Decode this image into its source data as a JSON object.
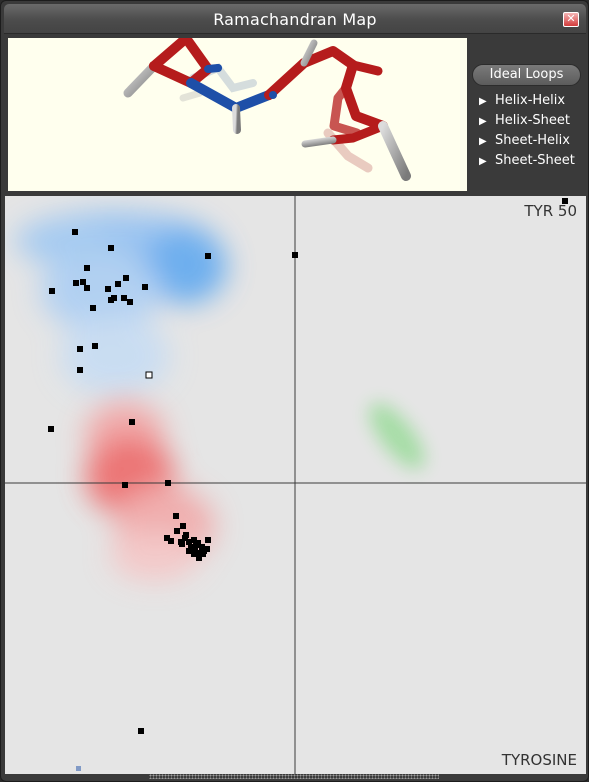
{
  "window": {
    "title": "Ramachandran Map",
    "close_glyph": "✕"
  },
  "side_panel": {
    "ideal_loops_label": "Ideal Loops",
    "items": [
      {
        "label": "Helix-Helix"
      },
      {
        "label": "Helix-Sheet"
      },
      {
        "label": "Sheet-Helix"
      },
      {
        "label": "Sheet-Sheet"
      }
    ]
  },
  "map": {
    "residue_label": "TYR 50",
    "amino_acid_label": "TYROSINE"
  },
  "colors": {
    "beta_region": "#4a9cf0",
    "alpha_region": "#ee5a5a",
    "left_helix_region": "#7ed07e",
    "viewer_background": "#ffffee",
    "map_background": "#e5e5e5",
    "bond_red": "#b51c1c",
    "bond_blue": "#1e4fa8"
  },
  "icons": {
    "close": "close-icon",
    "expand": "triangle-right-icon"
  }
}
